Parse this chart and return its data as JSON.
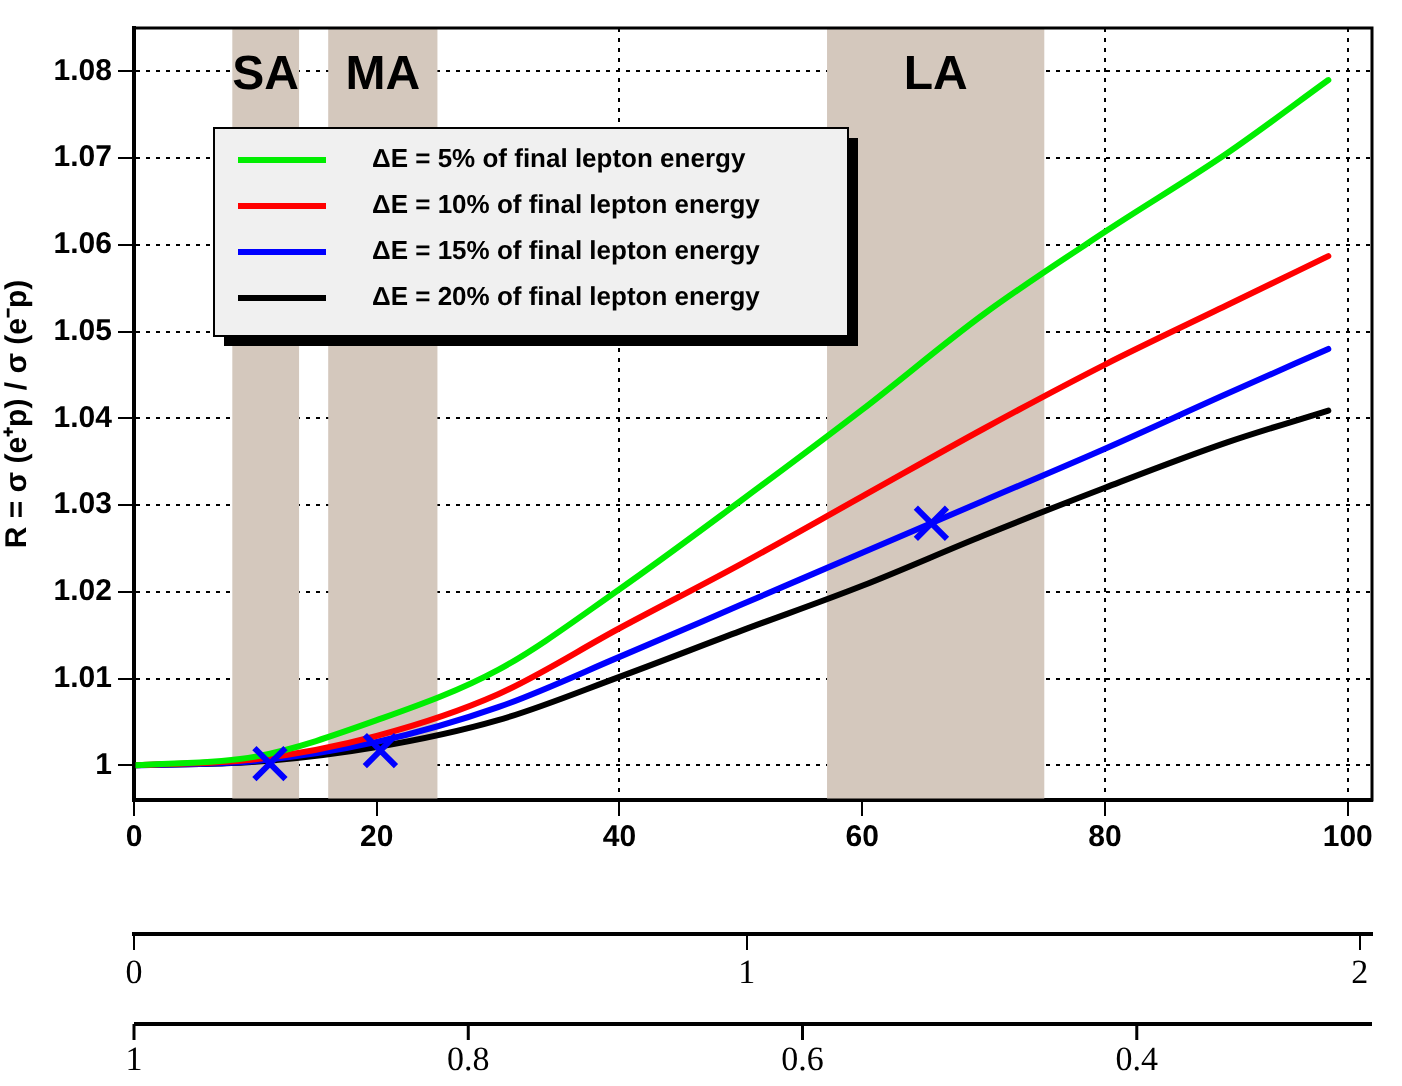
{
  "chart_data": {
    "type": "line",
    "ylabel": "R = σ (e⁺p) / σ (e⁻p)",
    "x": [
      0,
      10,
      20,
      30,
      40,
      50,
      60,
      70,
      80,
      90,
      98.4
    ],
    "series": [
      {
        "name": "ΔE = 5% of final lepton energy",
        "color": "#00ee00",
        "values": [
          1,
          1.001,
          1.0052,
          1.011,
          1.0203,
          1.0305,
          1.041,
          1.052,
          1.0615,
          1.0705,
          1.079
        ]
      },
      {
        "name": "ΔE = 10% of final lepton energy",
        "color": "#ff0000",
        "values": [
          1,
          1.0007,
          1.0034,
          1.0082,
          1.0158,
          1.0232,
          1.031,
          1.0388,
          1.0462,
          1.053,
          1.0587
        ]
      },
      {
        "name": "ΔE = 15% of final lepton energy",
        "color": "#0000ff",
        "values": [
          1,
          1.0005,
          1.0027,
          1.0067,
          1.0125,
          1.0185,
          1.0245,
          1.0305,
          1.0365,
          1.0428,
          1.048
        ]
      },
      {
        "name": "ΔE = 20% of final lepton energy",
        "color": "#000000",
        "values": [
          1,
          1.0004,
          1.0021,
          1.0052,
          1.0102,
          1.0155,
          1.0207,
          1.0265,
          1.032,
          1.0372,
          1.0409
        ]
      },
      {
        "type": "scatter",
        "marker": "cross",
        "color": "#0000ff",
        "x": [
          11.2,
          20.3,
          65.7
        ],
        "values": [
          1.0002,
          1.0017,
          1.0279
        ]
      }
    ],
    "xlim": [
      0,
      102
    ],
    "xticks": [
      0,
      20,
      40,
      60,
      80,
      100
    ],
    "ylim": [
      0.996,
      1.085
    ],
    "yticks": [
      1,
      1.01,
      1.02,
      1.03,
      1.04,
      1.05,
      1.06,
      1.07,
      1.08
    ],
    "x2lim": [
      0,
      2.02
    ],
    "x2ticks": [
      0,
      1,
      2
    ],
    "annotations": [
      "1",
      "0.8",
      "0.6",
      "0.4"
    ],
    "bands": [
      {
        "axis": "x",
        "from": 8.1,
        "to": 13.6,
        "label": "SA",
        "color": "#d4c8bd"
      },
      {
        "axis": "x",
        "from": 16,
        "to": 25,
        "label": "MA",
        "color": "#d4c8bd"
      },
      {
        "axis": "x",
        "from": 57.1,
        "to": 75,
        "label": "LA",
        "color": "#d4c8bd"
      }
    ],
    "grid": true,
    "legend": "top left",
    "line_style": "solid"
  }
}
